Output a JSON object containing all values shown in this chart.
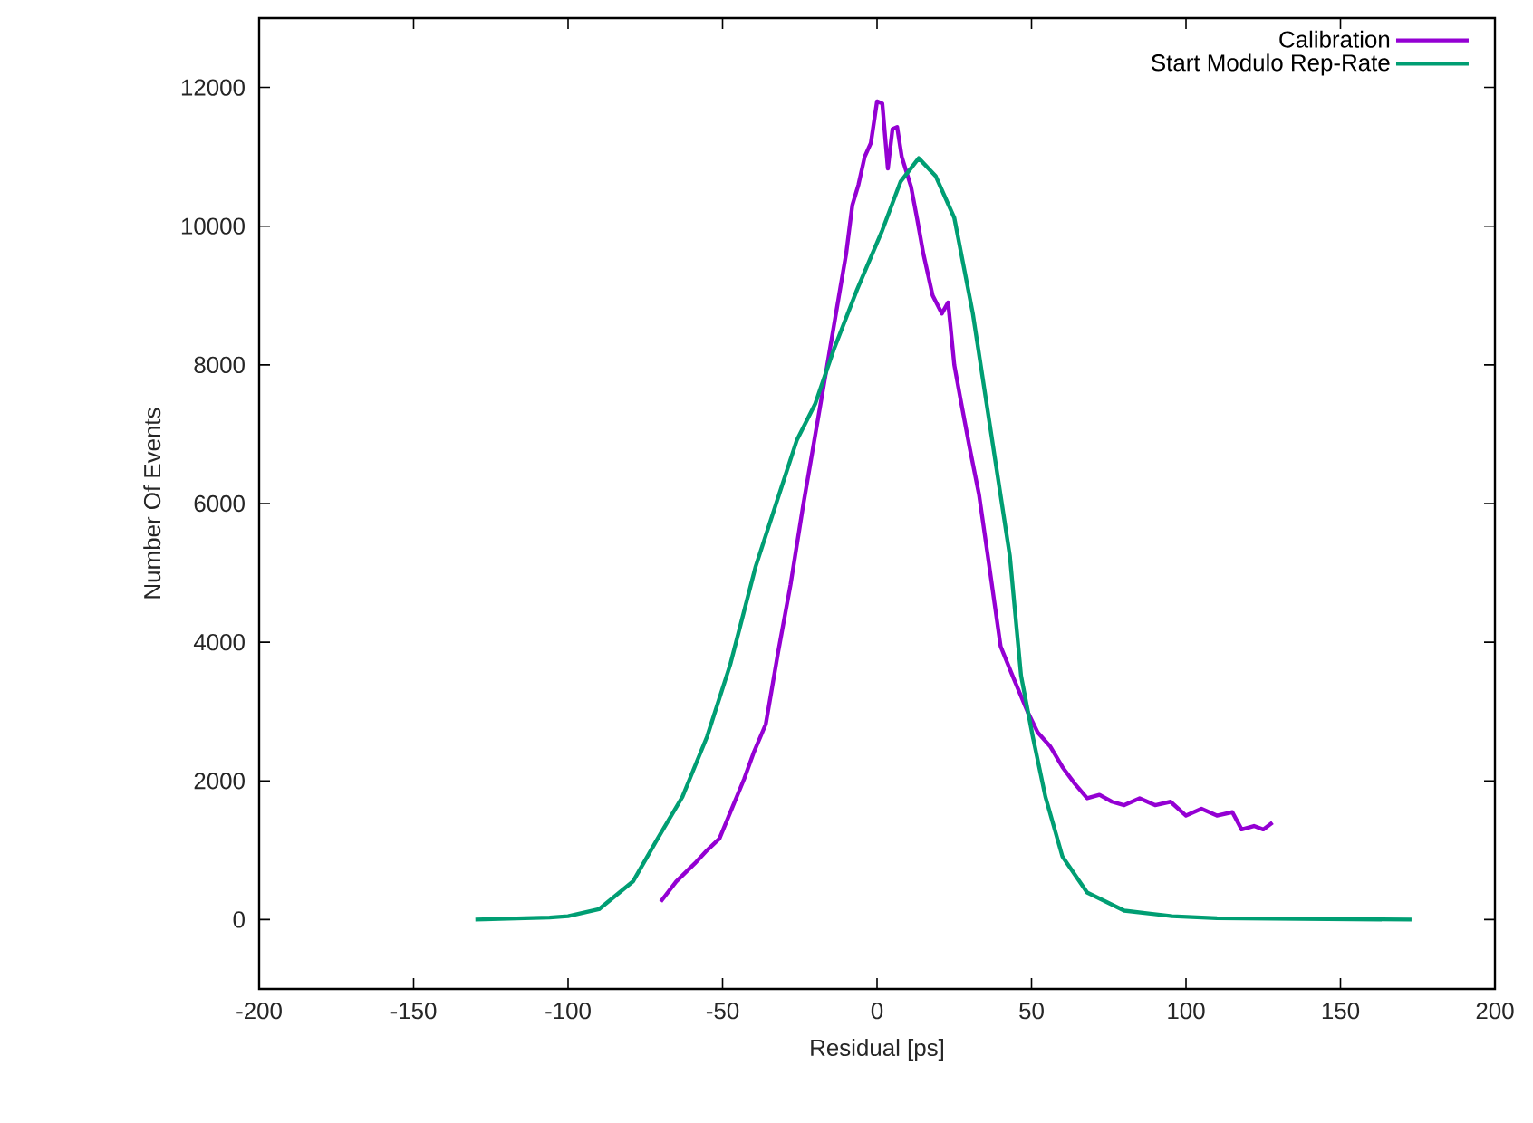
{
  "chart_data": {
    "type": "line",
    "xlabel": "Residual [ps]",
    "ylabel": "Number Of Events",
    "xlim": [
      -200,
      200
    ],
    "xticks": [
      -200,
      -150,
      -100,
      -50,
      0,
      50,
      100,
      150,
      200
    ],
    "ylim": [
      -1000,
      13000
    ],
    "yticks": [
      0,
      2000,
      4000,
      6000,
      8000,
      10000,
      12000
    ],
    "grid": false,
    "legend": "top right",
    "marker": "none",
    "line_style": "solid",
    "series": [
      {
        "name": "Calibration",
        "color": "#9400d3",
        "x": [
          -70,
          -65,
          -59,
          -55,
          -51,
          -47,
          -43,
          -40,
          -36,
          -32,
          -28,
          -24,
          -20,
          -16,
          -12,
          -10,
          -8,
          -6,
          -4,
          -2,
          0,
          1.7,
          3.5,
          5,
          6.5,
          8,
          11,
          13,
          15,
          18,
          21,
          23,
          25,
          27,
          30,
          33,
          36,
          40,
          44,
          48.7,
          52,
          56,
          60,
          64,
          68,
          72,
          76,
          80,
          85,
          90,
          95,
          100,
          105,
          110,
          115,
          118,
          122,
          125,
          128
        ],
        "values": [
          260,
          550,
          810,
          1000,
          1170,
          1600,
          2030,
          2400,
          2820,
          3860,
          4830,
          5950,
          6990,
          8030,
          9080,
          9600,
          10300,
          10600,
          11000,
          11200,
          11800,
          11770,
          10830,
          11400,
          11430,
          11000,
          10570,
          10100,
          9600,
          9000,
          8740,
          8900,
          8000,
          7510,
          6800,
          6130,
          5200,
          3940,
          3500,
          3000,
          2700,
          2500,
          2200,
          1960,
          1750,
          1800,
          1700,
          1650,
          1750,
          1650,
          1700,
          1500,
          1600,
          1500,
          1550,
          1300,
          1350,
          1300,
          1400
        ]
      },
      {
        "name": "Start Modulo Rep-Rate",
        "color": "#009e73",
        "x": [
          -130,
          -106,
          -100,
          -90,
          -79,
          -71,
          -63,
          -55,
          -47.5,
          -39.3,
          -31.7,
          -26,
          -20,
          -14,
          -6.5,
          1.7,
          7.6,
          13.5,
          19,
          25,
          31,
          37,
          43,
          46.6,
          50.4,
          54.5,
          60,
          68,
          80,
          95.5,
          110,
          173
        ],
        "values": [
          0,
          30,
          50,
          150,
          550,
          1170,
          1770,
          2640,
          3680,
          5090,
          6130,
          6910,
          7440,
          8220,
          9080,
          9940,
          10640,
          10980,
          10720,
          10120,
          8740,
          6990,
          5240,
          3520,
          2640,
          1770,
          910,
          390,
          130,
          50,
          20,
          0
        ]
      }
    ]
  }
}
